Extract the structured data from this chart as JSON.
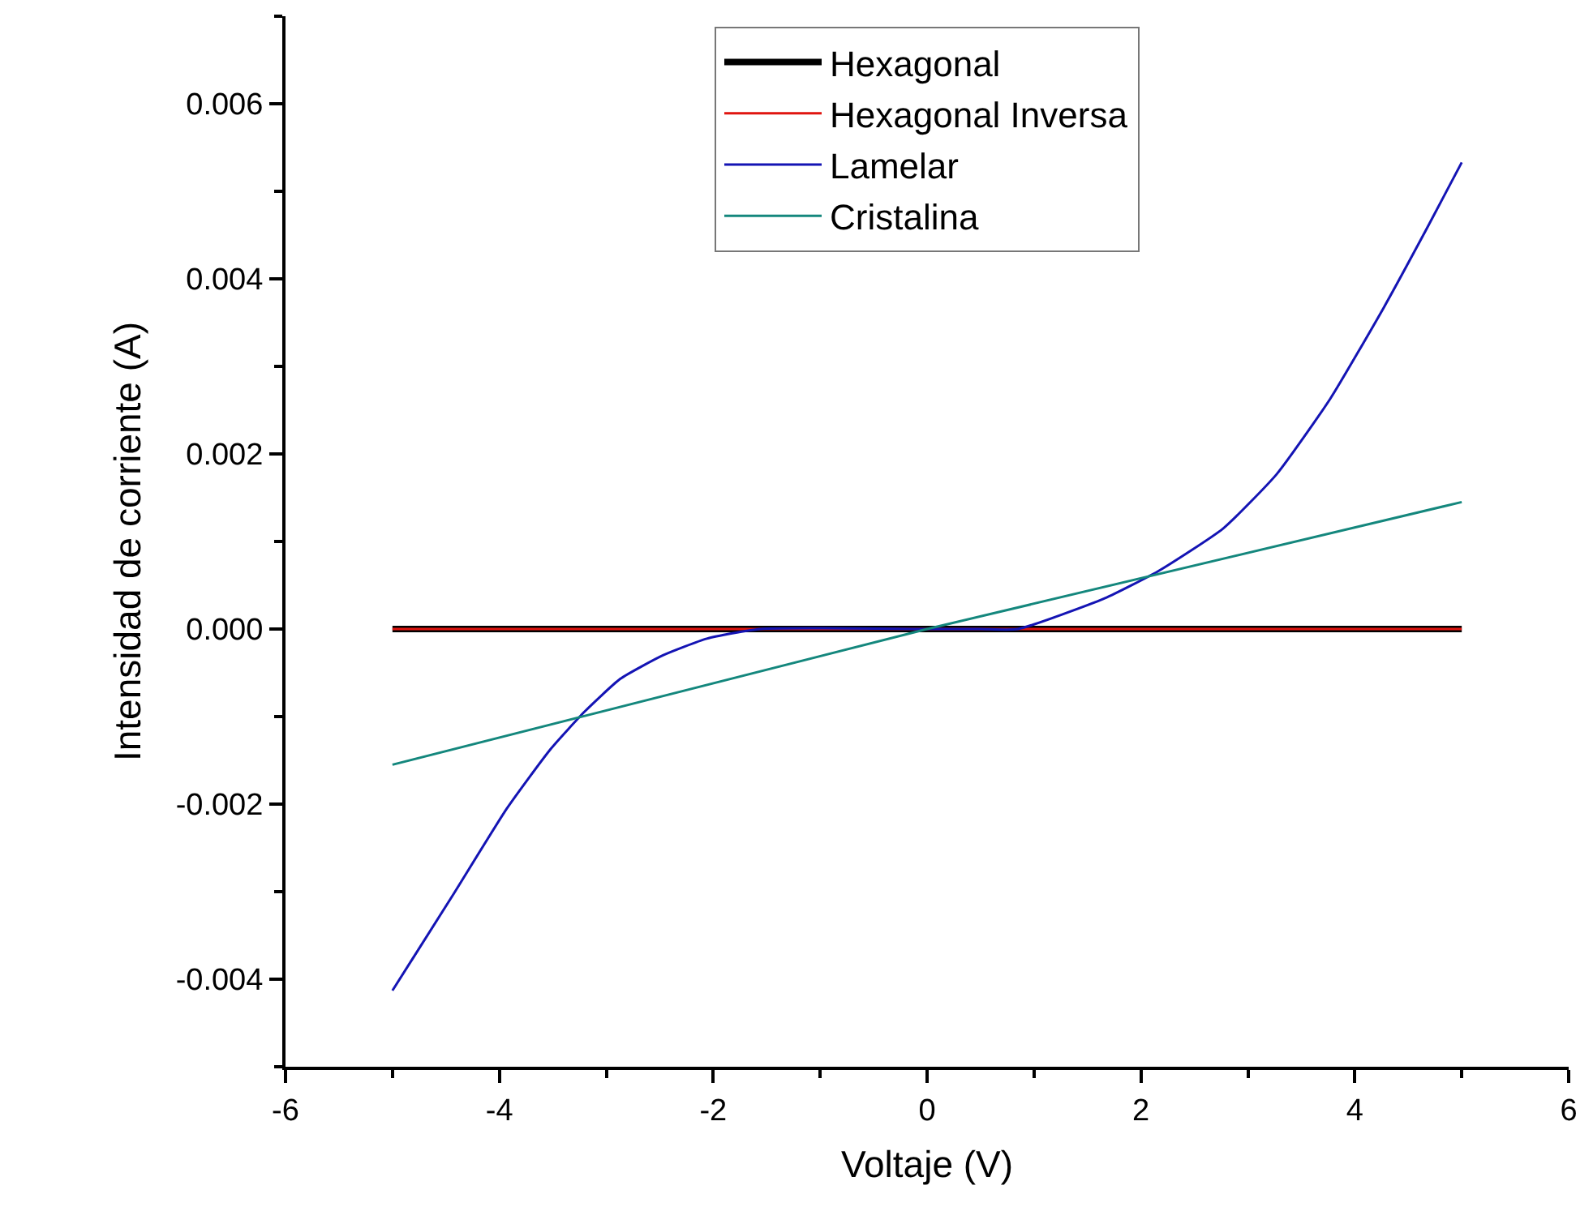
{
  "chart_data": {
    "type": "line",
    "xlabel": "Voltaje (V)",
    "ylabel": "Intensidad de corriente (A)",
    "xlim": [
      -6,
      6
    ],
    "xticks": [
      -6,
      -4,
      -2,
      0,
      2,
      4,
      6
    ],
    "ylim": [
      -0.005,
      0.007
    ],
    "yticks": [
      {
        "value": -0.004,
        "label": "-0.004"
      },
      {
        "value": -0.002,
        "label": "-0.002"
      },
      {
        "value": 0,
        "label": "0.000"
      },
      {
        "value": 0.002,
        "label": "0.002"
      },
      {
        "value": 0.004,
        "label": "0.004"
      },
      {
        "value": 0.006,
        "label": "0.006"
      }
    ],
    "legend": "top",
    "marker": "none",
    "line_style": "solid",
    "series": [
      {
        "name": "Hexagonal",
        "color": "#000000",
        "x": [
          -5,
          5
        ],
        "values": [
          0,
          0
        ]
      },
      {
        "name": "Hexagonal Inversa",
        "color": "#e0140f",
        "x": [
          -5,
          5
        ],
        "values": [
          0,
          0
        ]
      },
      {
        "name": "Lamelar",
        "color": "#1414b4",
        "x": [
          -5,
          -4.43,
          -3.93,
          -3.52,
          -3.2,
          -2.87,
          -2.47,
          -2.06,
          -1.56,
          0,
          0.5,
          0.85,
          1.66,
          2.16,
          2.77,
          3.27,
          3.77,
          4.27,
          4.68,
          5
        ],
        "values": [
          -0.00413,
          -0.00303,
          -0.00205,
          -0.00137,
          -0.00094,
          -0.00057,
          -0.0003,
          -0.00011,
          0,
          0,
          0,
          0,
          0.00035,
          0.00066,
          0.00115,
          0.00177,
          0.00263,
          0.00367,
          0.00459,
          0.00533
        ]
      },
      {
        "name": "Cristalina",
        "color": "#14877d",
        "x": [
          -5,
          0,
          5
        ],
        "values": [
          -0.00155,
          0,
          0.00145
        ]
      }
    ]
  }
}
